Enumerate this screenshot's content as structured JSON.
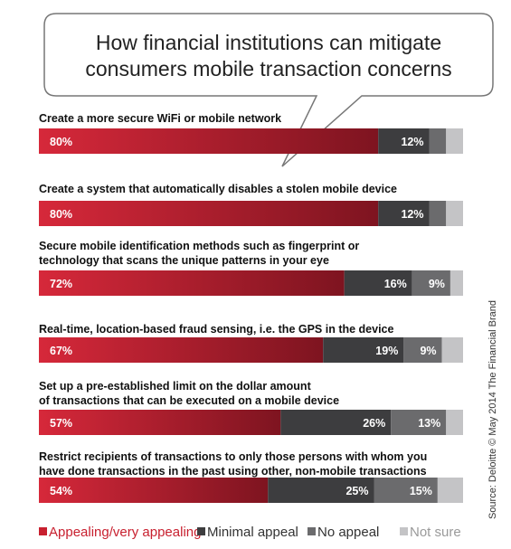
{
  "chart_data": {
    "type": "bar",
    "orientation": "horizontal",
    "stacked": true,
    "title": "How financial institutions can mitigate consumers mobile transaction concerns",
    "title_lines": [
      "How financial institutions can mitigate",
      "consumers mobile transaction concerns"
    ],
    "categories": [
      [
        "Create a more secure WiFi or mobile network"
      ],
      [
        "Create a system that automatically disables a stolen mobile device"
      ],
      [
        "Secure mobile identification methods such as fingerprint or",
        "technology that scans the unique patterns in your eye"
      ],
      [
        "Real-time, location-based fraud sensing, i.e. the GPS in the device"
      ],
      [
        "Set up a pre-established limit on the dollar amount",
        "of transactions that can be executed on a mobile device"
      ],
      [
        "Restrict recipients of transactions to only those persons with whom you",
        "have done transactions in the past using other, non-mobile transactions"
      ]
    ],
    "series": [
      {
        "name": "Appealing/very appealing",
        "color": "#c8202f",
        "values": [
          80,
          80,
          72,
          67,
          57,
          54
        ],
        "labels": [
          "80%",
          "80%",
          "72%",
          "67%",
          "57%",
          "54%"
        ]
      },
      {
        "name": "Minimal appeal",
        "color": "#3d3d3f",
        "values": [
          12,
          12,
          16,
          19,
          26,
          25
        ],
        "labels": [
          "12%",
          "12%",
          "16%",
          "19%",
          "26%",
          "25%"
        ]
      },
      {
        "name": "No appeal",
        "color": "#6b6b6d",
        "values": [
          4,
          4,
          9,
          9,
          13,
          15
        ],
        "labels": [
          "",
          "",
          "9%",
          "9%",
          "13%",
          "15%"
        ]
      },
      {
        "name": "Not sure",
        "color": "#c4c4c6",
        "values": [
          4,
          4,
          3,
          5,
          4,
          6
        ],
        "labels": [
          "",
          "",
          "",
          "",
          "",
          ""
        ]
      }
    ],
    "xlim": [
      0,
      100
    ],
    "grid": false,
    "legend_position": "bottom",
    "source": "Source: Deloitte © May 2014 The Financial Brand"
  }
}
